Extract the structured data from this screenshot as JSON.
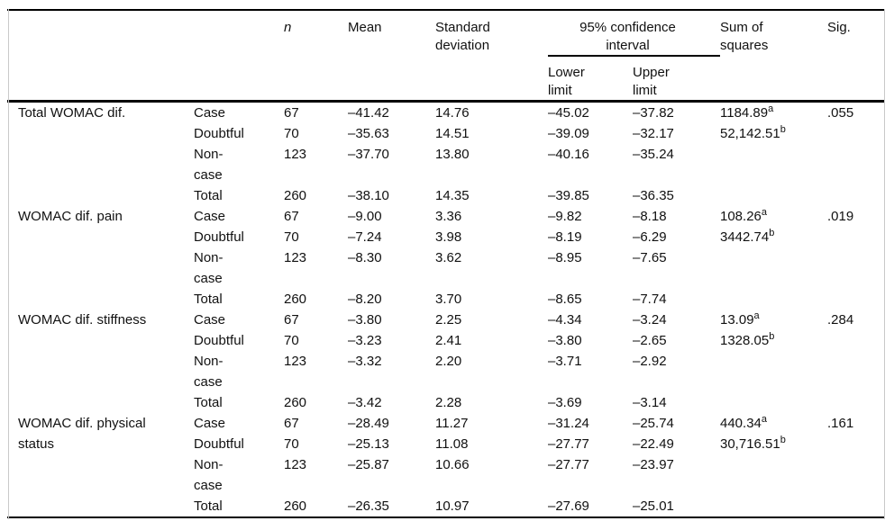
{
  "table": {
    "header": {
      "n": "n",
      "mean": "Mean",
      "sd": "Standard\ndeviation",
      "ci": "95% confidence\ninterval",
      "lower": "Lower\nlimit",
      "upper": "Upper\nlimit",
      "sum_of_squares": "Sum of\nsquares",
      "sig": "Sig."
    },
    "sections": [
      {
        "label": "Total WOMAC dif.",
        "rows": [
          {
            "group": "Case",
            "n": "67",
            "mean": "–41.42",
            "sd": "14.76",
            "lower": "–45.02",
            "upper": "–37.82",
            "sum_sq": "1184.89",
            "sum_sq_sup": "a",
            "sig": ".055"
          },
          {
            "group": "Doubtful",
            "n": "70",
            "mean": "–35.63",
            "sd": "14.51",
            "lower": "–39.09",
            "upper": "–32.17",
            "sum_sq": "52,142.51",
            "sum_sq_sup": "b",
            "sig": ""
          },
          {
            "group": "Non-\ncase",
            "n": "123",
            "mean": "–37.70",
            "sd": "13.80",
            "lower": "–40.16",
            "upper": "–35.24",
            "sum_sq": "",
            "sum_sq_sup": "",
            "sig": ""
          },
          {
            "group": "Total",
            "n": "260",
            "mean": "–38.10",
            "sd": "14.35",
            "lower": "–39.85",
            "upper": "–36.35",
            "sum_sq": "",
            "sum_sq_sup": "",
            "sig": ""
          }
        ]
      },
      {
        "label": "WOMAC dif. pain",
        "rows": [
          {
            "group": "Case",
            "n": "67",
            "mean": "–9.00",
            "sd": "3.36",
            "lower": "–9.82",
            "upper": "–8.18",
            "sum_sq": "108.26",
            "sum_sq_sup": "a",
            "sig": ".019"
          },
          {
            "group": "Doubtful",
            "n": "70",
            "mean": "–7.24",
            "sd": "3.98",
            "lower": "–8.19",
            "upper": "–6.29",
            "sum_sq": "3442.74",
            "sum_sq_sup": "b",
            "sig": ""
          },
          {
            "group": "Non-\ncase",
            "n": "123",
            "mean": "–8.30",
            "sd": "3.62",
            "lower": "–8.95",
            "upper": "–7.65",
            "sum_sq": "",
            "sum_sq_sup": "",
            "sig": ""
          },
          {
            "group": "Total",
            "n": "260",
            "mean": "–8.20",
            "sd": "3.70",
            "lower": "–8.65",
            "upper": "–7.74",
            "sum_sq": "",
            "sum_sq_sup": "",
            "sig": ""
          }
        ]
      },
      {
        "label": "WOMAC dif. stiffness",
        "rows": [
          {
            "group": "Case",
            "n": "67",
            "mean": "–3.80",
            "sd": "2.25",
            "lower": "–4.34",
            "upper": "–3.24",
            "sum_sq": "13.09",
            "sum_sq_sup": "a",
            "sig": ".284"
          },
          {
            "group": "Doubtful",
            "n": "70",
            "mean": "–3.23",
            "sd": "2.41",
            "lower": "–3.80",
            "upper": "–2.65",
            "sum_sq": "1328.05",
            "sum_sq_sup": "b",
            "sig": ""
          },
          {
            "group": "Non-\ncase",
            "n": "123",
            "mean": "–3.32",
            "sd": "2.20",
            "lower": "–3.71",
            "upper": "–2.92",
            "sum_sq": "",
            "sum_sq_sup": "",
            "sig": ""
          },
          {
            "group": "Total",
            "n": "260",
            "mean": "–3.42",
            "sd": "2.28",
            "lower": "–3.69",
            "upper": "–3.14",
            "sum_sq": "",
            "sum_sq_sup": "",
            "sig": ""
          }
        ]
      },
      {
        "label": "WOMAC dif. physical\nstatus",
        "rows": [
          {
            "group": "Case",
            "n": "67",
            "mean": "–28.49",
            "sd": "11.27",
            "lower": "–31.24",
            "upper": "–25.74",
            "sum_sq": "440.34",
            "sum_sq_sup": "a",
            "sig": ".161"
          },
          {
            "group": "Doubtful",
            "n": "70",
            "mean": "–25.13",
            "sd": "11.08",
            "lower": "–27.77",
            "upper": "–22.49",
            "sum_sq": "30,716.51",
            "sum_sq_sup": "b",
            "sig": ""
          },
          {
            "group": "Non-\ncase",
            "n": "123",
            "mean": "–25.87",
            "sd": "10.66",
            "lower": "–27.77",
            "upper": "–23.97",
            "sum_sq": "",
            "sum_sq_sup": "",
            "sig": ""
          },
          {
            "group": "Total",
            "n": "260",
            "mean": "–26.35",
            "sd": "10.97",
            "lower": "–27.69",
            "upper": "–25.01",
            "sum_sq": "",
            "sum_sq_sup": "",
            "sig": ""
          }
        ]
      }
    ]
  },
  "colors": {
    "rule": "#000000",
    "edge_line": "#c9c9c9",
    "text": "#111111",
    "background": "#ffffff"
  }
}
